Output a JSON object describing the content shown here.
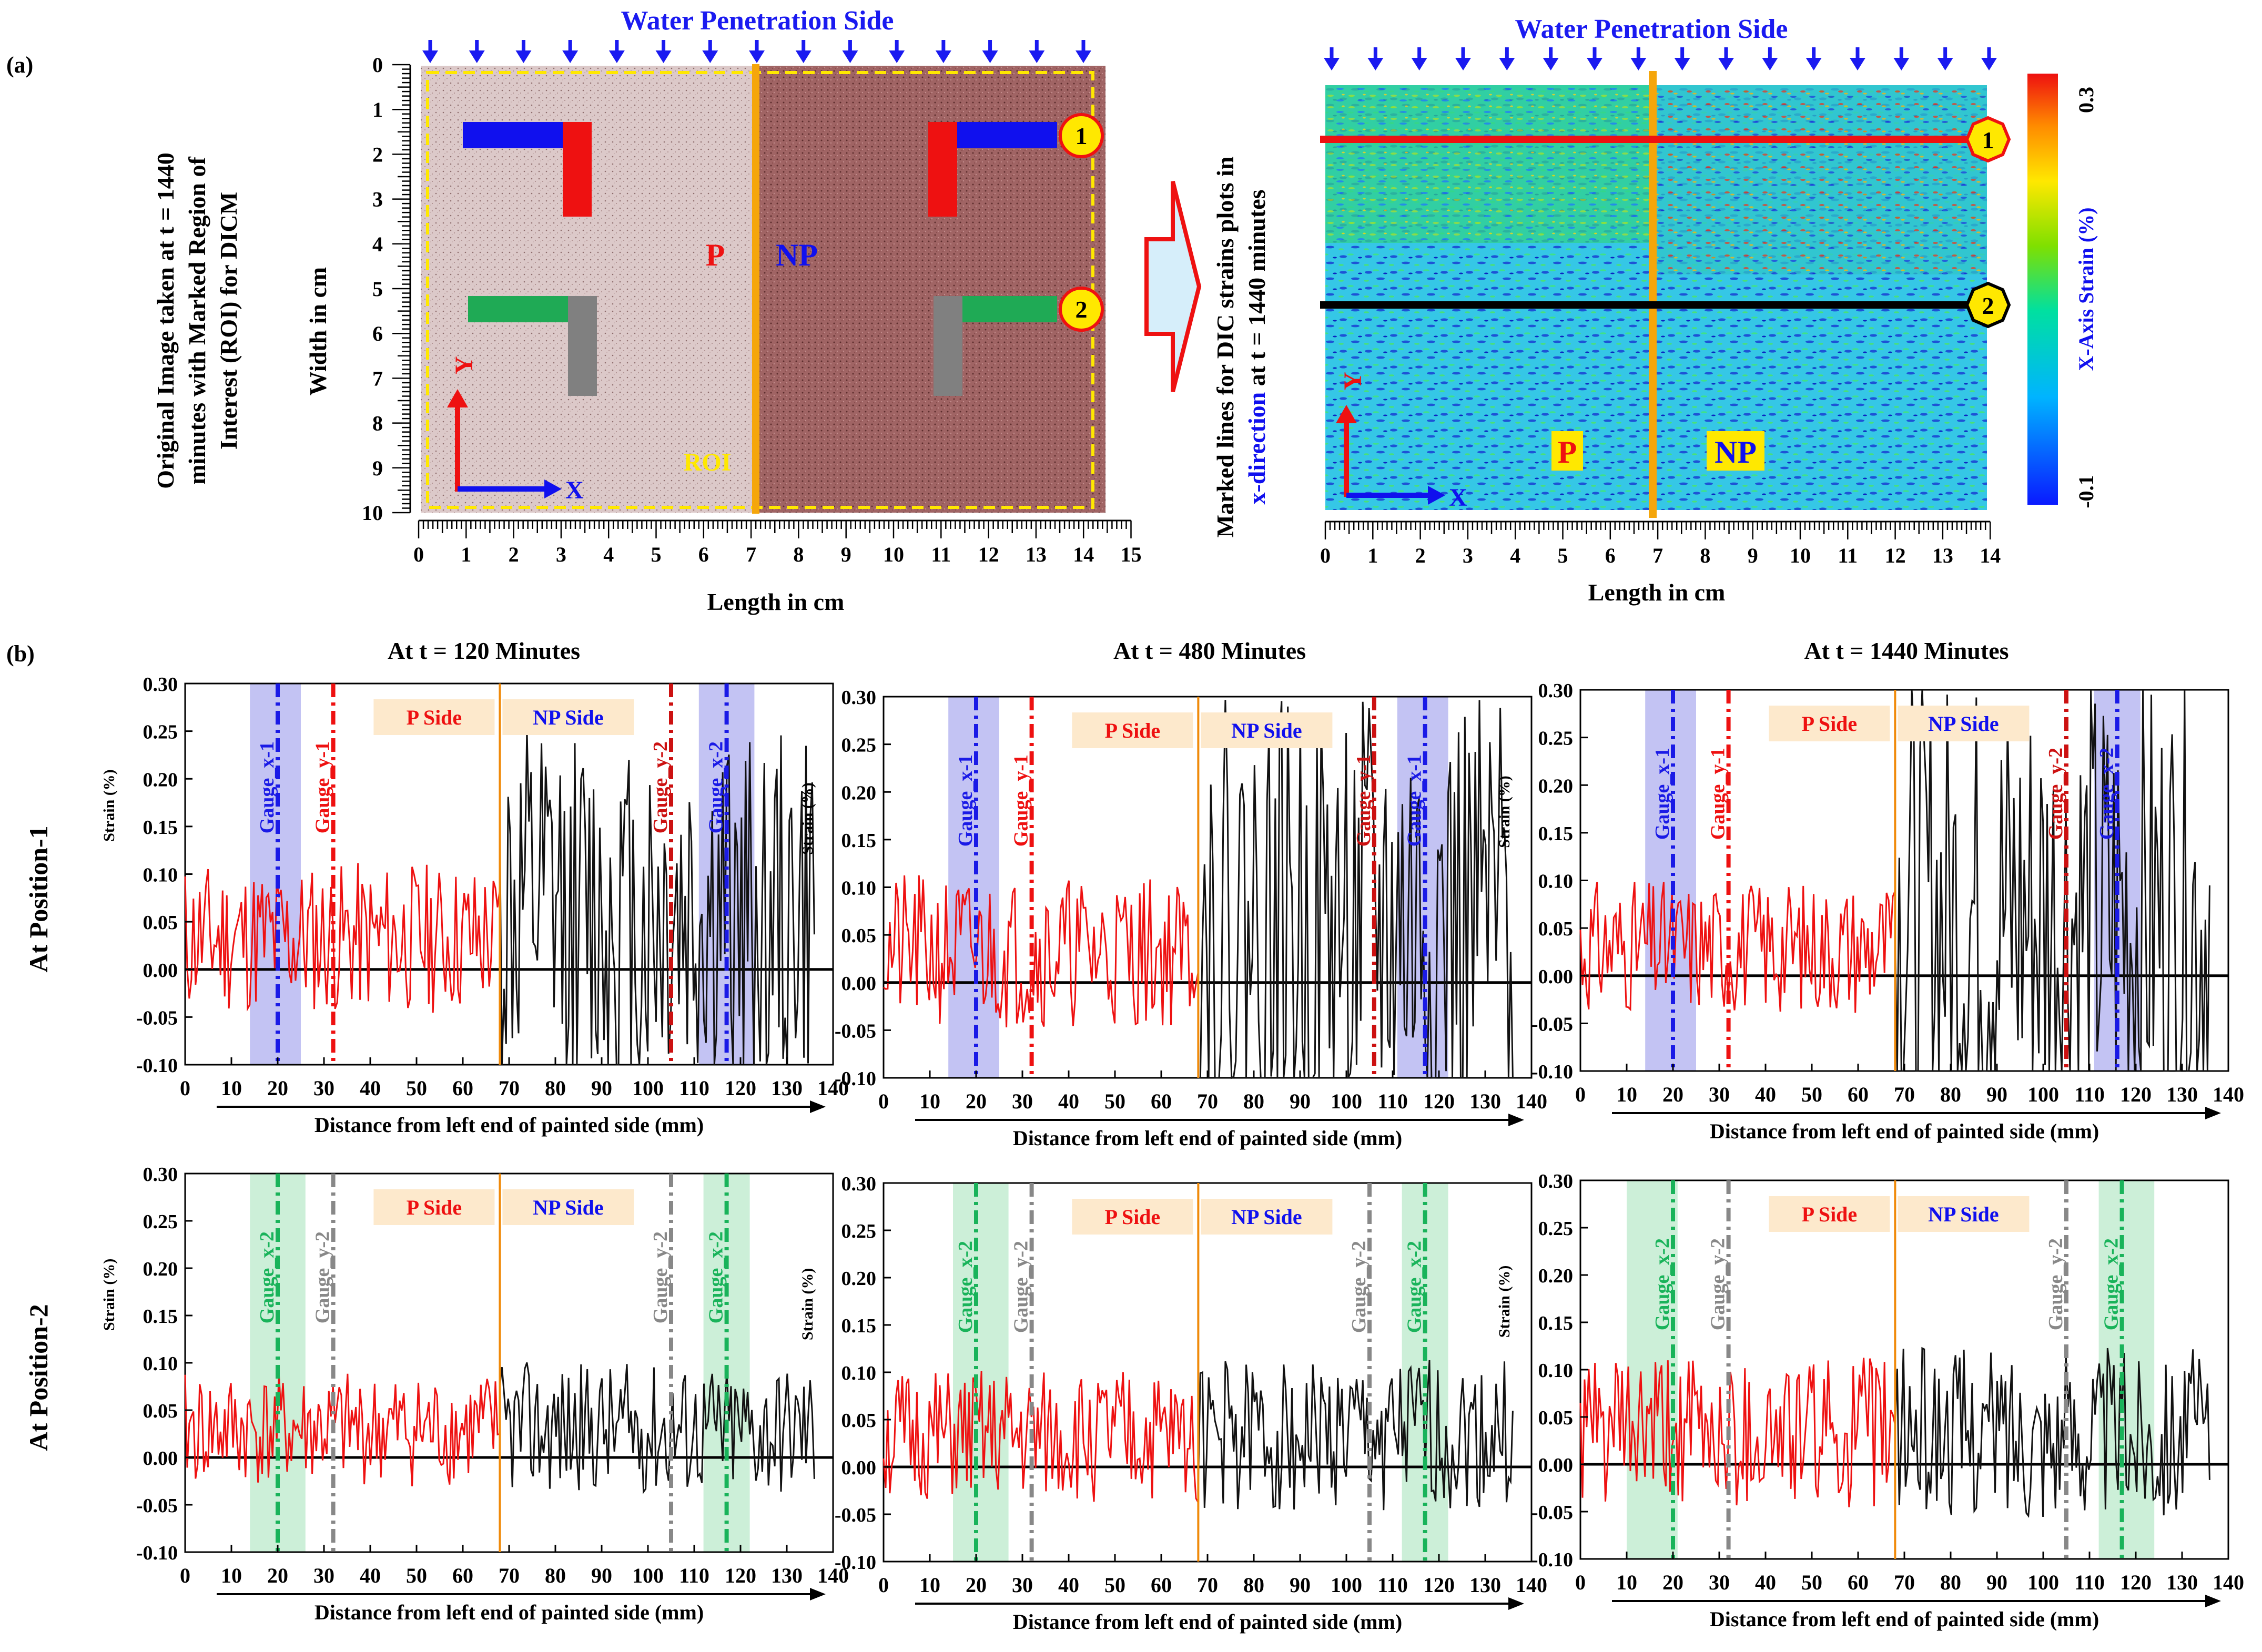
{
  "panel_a": {
    "label": "(a)",
    "left_caption_lines": [
      "Original Image taken at t = 1440",
      "minutes with Marked Region of",
      "Interest (ROI) for DICM"
    ],
    "right_caption_line1": "Marked lines for DIC  strains plots in",
    "right_caption_line2_colored": "x-direction",
    "right_caption_line2_rest": " at t = 1440 minutes",
    "water_side": "Water Penetration Side",
    "width_label": "Width in cm",
    "length_label": "Length in cm",
    "x_ticks_left": [
      "0",
      "1",
      "2",
      "3",
      "4",
      "5",
      "6",
      "7",
      "8",
      "9",
      "10",
      "11",
      "12",
      "13",
      "14",
      "15"
    ],
    "x_ticks_right": [
      "0",
      "1",
      "2",
      "3",
      "4",
      "5",
      "6",
      "7",
      "8",
      "9",
      "10",
      "11",
      "12",
      "13",
      "14"
    ],
    "y_ticks": [
      "0",
      "1",
      "2",
      "3",
      "4",
      "5",
      "6",
      "7",
      "8",
      "9",
      "10"
    ],
    "p_label": "P",
    "np_label": "NP",
    "roi_label": "ROI",
    "axis_x": "X",
    "axis_y": "Y",
    "marker_1": "1",
    "marker_2": "2",
    "colorbar": {
      "max_label": "0.3",
      "min_label": "-0.1",
      "title": "X-Axis Strain (%)"
    },
    "colors": {
      "blue": "#1010ee",
      "red": "#ee1111",
      "orange": "#f5a60b",
      "green": "#1faa55",
      "yellow": "#ffee00"
    }
  },
  "panel_b": {
    "label": "(b)",
    "row_labels": [
      "At Position-1",
      "At Position-2"
    ],
    "col_titles": [
      "At t = 120 Minutes",
      "At t = 480 Minutes",
      "At t = 1440 Minutes"
    ],
    "x_label": "Distance from left end of painted side (mm)",
    "y_label": "Strain (%)",
    "p_side": "P Side",
    "np_side": "NP Side"
  },
  "chart_data": [
    {
      "type": "line",
      "title": "At t = 120 Minutes",
      "row": "At Position-1",
      "xlabel": "Distance from left end of painted side (mm)",
      "ylabel": "Strain (%)",
      "xlim": [
        0,
        140
      ],
      "ylim": [
        -0.1,
        0.3
      ],
      "x_ticks": [
        0,
        10,
        20,
        30,
        40,
        50,
        60,
        70,
        80,
        90,
        100,
        110,
        120,
        130,
        140
      ],
      "y_ticks": [
        "-0.10",
        "-0.05",
        "0.00",
        "0.05",
        "0.10",
        "0.15",
        "0.20",
        "0.25",
        "0.30"
      ],
      "boundary_mm": 68,
      "series": [
        {
          "name": "P Side",
          "color": "#ee1111",
          "x_range": [
            0,
            68
          ],
          "amplitude": 0.08,
          "seed": 11
        },
        {
          "name": "NP Side",
          "color": "#111111",
          "x_range": [
            68,
            136
          ],
          "amplitude": 0.2,
          "seed": 12
        }
      ],
      "gauges": [
        {
          "name": "Gauge_x-1",
          "x": 20,
          "color": "#1a1ae6",
          "band": [
            14,
            25
          ],
          "band_color": "#aaaaee"
        },
        {
          "name": "Gauge_y-1",
          "x": 32,
          "color": "#ee1111"
        },
        {
          "name": "Gauge_y-2",
          "x": 105,
          "color": "#cc1111"
        },
        {
          "name": "Gauge_x-2",
          "x": 117,
          "color": "#1a1ae6",
          "band": [
            111,
            123
          ],
          "band_color": "#aaaaee"
        }
      ]
    },
    {
      "type": "line",
      "title": "At t = 480 Minutes",
      "row": "At Position-1",
      "xlabel": "Distance from left end of painted side (mm)",
      "ylabel": "Strain (%)",
      "xlim": [
        0,
        140
      ],
      "ylim": [
        -0.1,
        0.3
      ],
      "x_ticks": [
        0,
        10,
        20,
        30,
        40,
        50,
        60,
        70,
        80,
        90,
        100,
        110,
        120,
        130,
        140
      ],
      "y_ticks": [
        "-0.10",
        "-0.05",
        "0.00",
        "0.05",
        "0.10",
        "0.15",
        "0.20",
        "0.25",
        "0.30"
      ],
      "boundary_mm": 68,
      "series": [
        {
          "name": "P Side",
          "color": "#ee1111",
          "x_range": [
            0,
            68
          ],
          "amplitude": 0.08,
          "seed": 21
        },
        {
          "name": "NP Side",
          "color": "#111111",
          "x_range": [
            68,
            136
          ],
          "amplitude": 0.24,
          "seed": 22
        }
      ],
      "gauges": [
        {
          "name": "Gauge_x-1",
          "x": 20,
          "color": "#1a1ae6",
          "band": [
            14,
            25
          ],
          "band_color": "#aaaaee"
        },
        {
          "name": "Gauge_y-1",
          "x": 32,
          "color": "#ee1111"
        },
        {
          "name": "Gauge_y-1",
          "x": 106,
          "color": "#cc1111"
        },
        {
          "name": "Gauge_x-1",
          "x": 117,
          "color": "#1a1ae6",
          "band": [
            111,
            122
          ],
          "band_color": "#aaaaee"
        }
      ]
    },
    {
      "type": "line",
      "title": "At t = 1440 Minutes",
      "row": "At Position-1",
      "xlabel": "Distance from left end of painted side (mm)",
      "ylabel": "Strain (%)",
      "xlim": [
        0,
        140
      ],
      "ylim": [
        -0.1,
        0.3
      ],
      "x_ticks": [
        0,
        10,
        20,
        30,
        40,
        50,
        60,
        70,
        80,
        90,
        100,
        110,
        120,
        130,
        140
      ],
      "y_ticks": [
        "-0.10",
        "-0.05",
        "0.00",
        "0.05",
        "0.10",
        "0.15",
        "0.20",
        "0.25",
        "0.30"
      ],
      "boundary_mm": 68,
      "series": [
        {
          "name": "P Side",
          "color": "#ee1111",
          "x_range": [
            0,
            68
          ],
          "amplitude": 0.07,
          "seed": 31
        },
        {
          "name": "NP Side",
          "color": "#111111",
          "x_range": [
            68,
            136
          ],
          "amplitude": 0.26,
          "seed": 32
        }
      ],
      "gauges": [
        {
          "name": "Gauge_x-1",
          "x": 20,
          "color": "#1a1ae6",
          "band": [
            14,
            25
          ],
          "band_color": "#aaaaee"
        },
        {
          "name": "Gauge_y-1",
          "x": 32,
          "color": "#ee1111"
        },
        {
          "name": "Gauge_y-2",
          "x": 105,
          "color": "#cc1111"
        },
        {
          "name": "Gauge_x-2",
          "x": 116,
          "color": "#1a1ae6",
          "band": [
            111,
            121
          ],
          "band_color": "#aaaaee"
        }
      ]
    },
    {
      "type": "line",
      "title": "At t = 120 Minutes",
      "row": "At Position-2",
      "xlabel": "Distance from left end of painted side (mm)",
      "ylabel": "Strain (%)",
      "xlim": [
        0,
        140
      ],
      "ylim": [
        -0.1,
        0.3
      ],
      "x_ticks": [
        0,
        10,
        20,
        30,
        40,
        50,
        60,
        70,
        80,
        90,
        100,
        110,
        120,
        130,
        140
      ],
      "y_ticks": [
        "-0.10",
        "-0.05",
        "0.00",
        "0.05",
        "0.10",
        "0.15",
        "0.20",
        "0.25",
        "0.30"
      ],
      "boundary_mm": 68,
      "series": [
        {
          "name": "P Side",
          "color": "#ee1111",
          "x_range": [
            0,
            68
          ],
          "amplitude": 0.06,
          "seed": 41
        },
        {
          "name": "NP Side",
          "color": "#111111",
          "x_range": [
            68,
            136
          ],
          "amplitude": 0.07,
          "seed": 42
        }
      ],
      "gauges": [
        {
          "name": "Gauge_x-2",
          "x": 20,
          "color": "#19b35a",
          "band": [
            14,
            26
          ],
          "band_color": "#b6e8c8"
        },
        {
          "name": "Gauge_y-2",
          "x": 32,
          "color": "#888888"
        },
        {
          "name": "Gauge_y-2",
          "x": 105,
          "color": "#888888"
        },
        {
          "name": "Gauge_x-2",
          "x": 117,
          "color": "#19b35a",
          "band": [
            112,
            122
          ],
          "band_color": "#b6e8c8"
        }
      ]
    },
    {
      "type": "line",
      "title": "At t = 480 Minutes",
      "row": "At Position-2",
      "xlabel": "Distance from left end of painted side (mm)",
      "ylabel": "Strain (%)",
      "xlim": [
        0,
        140
      ],
      "ylim": [
        -0.1,
        0.3
      ],
      "x_ticks": [
        0,
        10,
        20,
        30,
        40,
        50,
        60,
        70,
        80,
        90,
        100,
        110,
        120,
        130,
        140
      ],
      "y_ticks": [
        "-0.10",
        "-0.05",
        "0.00",
        "0.05",
        "0.10",
        "0.15",
        "0.20",
        "0.25",
        "0.30"
      ],
      "boundary_mm": 68,
      "series": [
        {
          "name": "P Side",
          "color": "#ee1111",
          "x_range": [
            0,
            68
          ],
          "amplitude": 0.07,
          "seed": 51
        },
        {
          "name": "NP Side",
          "color": "#111111",
          "x_range": [
            68,
            136
          ],
          "amplitude": 0.08,
          "seed": 52
        }
      ],
      "gauges": [
        {
          "name": "Gauge_x-2",
          "x": 20,
          "color": "#19b35a",
          "band": [
            15,
            27
          ],
          "band_color": "#b6e8c8"
        },
        {
          "name": "Gauge_y-2",
          "x": 32,
          "color": "#888888"
        },
        {
          "name": "Gauge_y-2",
          "x": 105,
          "color": "#888888"
        },
        {
          "name": "Gauge_x-2",
          "x": 117,
          "color": "#19b35a",
          "band": [
            112,
            122
          ],
          "band_color": "#b6e8c8"
        }
      ]
    },
    {
      "type": "line",
      "title": "At t = 1440 Minutes",
      "row": "At Position-2",
      "xlabel": "Distance from left end of painted side (mm)",
      "ylabel": "Strain (%)",
      "xlim": [
        0,
        140
      ],
      "ylim": [
        -0.1,
        0.3
      ],
      "x_ticks": [
        0,
        10,
        20,
        30,
        40,
        50,
        60,
        70,
        80,
        90,
        100,
        110,
        120,
        130,
        140
      ],
      "y_ticks": [
        "-0.10",
        "-0.05",
        "0.00",
        "0.05",
        "0.10",
        "0.15",
        "0.20",
        "0.25",
        "0.30"
      ],
      "boundary_mm": 68,
      "series": [
        {
          "name": "P Side",
          "color": "#ee1111",
          "x_range": [
            0,
            68
          ],
          "amplitude": 0.08,
          "seed": 61
        },
        {
          "name": "NP Side",
          "color": "#111111",
          "x_range": [
            68,
            136
          ],
          "amplitude": 0.09,
          "seed": 62
        }
      ],
      "gauges": [
        {
          "name": "Gauge_x-2",
          "x": 20,
          "color": "#19b35a",
          "band": [
            10,
            21
          ],
          "band_color": "#b6e8c8"
        },
        {
          "name": "Gauge_y-2",
          "x": 32,
          "color": "#888888"
        },
        {
          "name": "Gauge_y-2",
          "x": 105,
          "color": "#888888"
        },
        {
          "name": "Gauge_x-2",
          "x": 117,
          "color": "#19b35a",
          "band": [
            112,
            124
          ],
          "band_color": "#b6e8c8"
        }
      ]
    }
  ]
}
